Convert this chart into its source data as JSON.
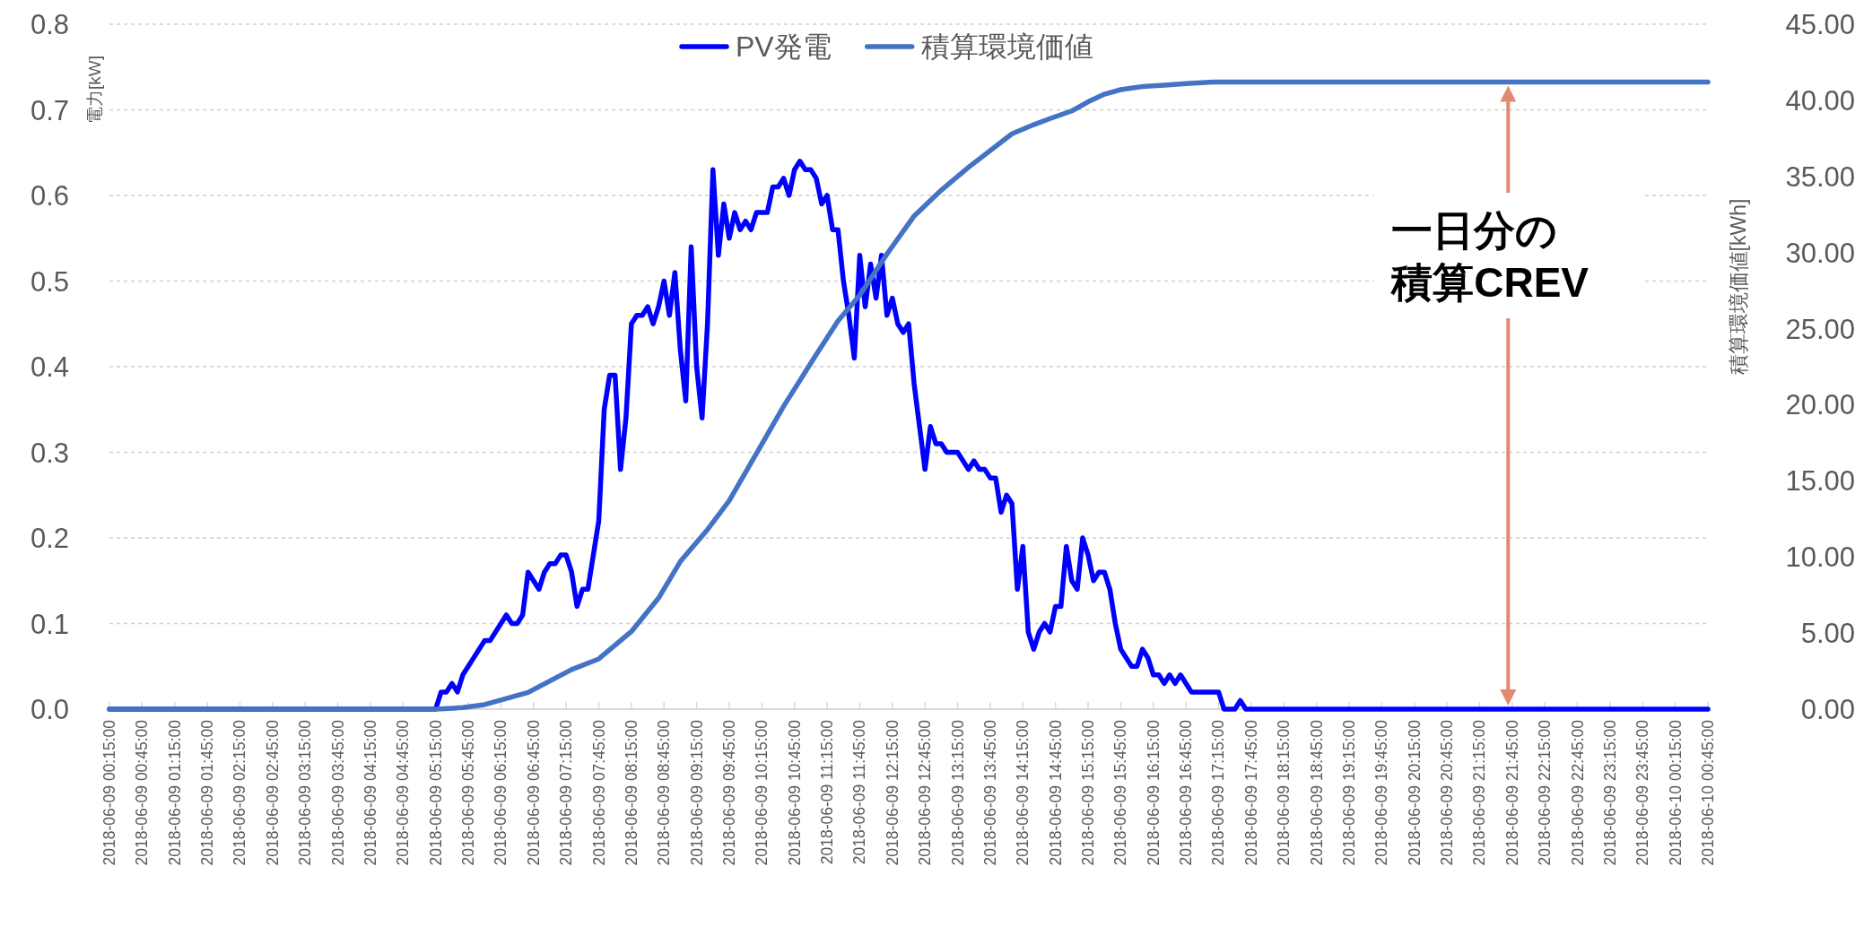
{
  "chart_data": {
    "type": "line",
    "ylabel": "電力[kW]",
    "y2label": "積算環境価値[kWh]",
    "legend": "top",
    "grid": "y",
    "xlim": [
      "2018-06-09T00:15",
      "2018-06-10T00:45"
    ],
    "xticks": [
      {
        "value": "2018-06-09T00:15",
        "label": "2018-06-09 00:15:00"
      },
      {
        "value": "2018-06-09T00:45",
        "label": "2018-06-09 00:45:00"
      },
      {
        "value": "2018-06-09T01:15",
        "label": "2018-06-09 01:15:00"
      },
      {
        "value": "2018-06-09T01:45",
        "label": "2018-06-09 01:45:00"
      },
      {
        "value": "2018-06-09T02:15",
        "label": "2018-06-09 02:15:00"
      },
      {
        "value": "2018-06-09T02:45",
        "label": "2018-06-09 02:45:00"
      },
      {
        "value": "2018-06-09T03:15",
        "label": "2018-06-09 03:15:00"
      },
      {
        "value": "2018-06-09T03:45",
        "label": "2018-06-09 03:45:00"
      },
      {
        "value": "2018-06-09T04:15",
        "label": "2018-06-09 04:15:00"
      },
      {
        "value": "2018-06-09T04:45",
        "label": "2018-06-09 04:45:00"
      },
      {
        "value": "2018-06-09T05:15",
        "label": "2018-06-09 05:15:00"
      },
      {
        "value": "2018-06-09T05:45",
        "label": "2018-06-09 05:45:00"
      },
      {
        "value": "2018-06-09T06:15",
        "label": "2018-06-09 06:15:00"
      },
      {
        "value": "2018-06-09T06:45",
        "label": "2018-06-09 06:45:00"
      },
      {
        "value": "2018-06-09T07:15",
        "label": "2018-06-09 07:15:00"
      },
      {
        "value": "2018-06-09T07:45",
        "label": "2018-06-09 07:45:00"
      },
      {
        "value": "2018-06-09T08:15",
        "label": "2018-06-09 08:15:00"
      },
      {
        "value": "2018-06-09T08:45",
        "label": "2018-06-09 08:45:00"
      },
      {
        "value": "2018-06-09T09:15",
        "label": "2018-06-09 09:15:00"
      },
      {
        "value": "2018-06-09T09:45",
        "label": "2018-06-09 09:45:00"
      },
      {
        "value": "2018-06-09T10:15",
        "label": "2018-06-09 10:15:00"
      },
      {
        "value": "2018-06-09T10:45",
        "label": "2018-06-09 10:45:00"
      },
      {
        "value": "2018-06-09T11:15",
        "label": "2018-06-09 11:15:00"
      },
      {
        "value": "2018-06-09T11:45",
        "label": "2018-06-09 11:45:00"
      },
      {
        "value": "2018-06-09T12:15",
        "label": "2018-06-09 12:15:00"
      },
      {
        "value": "2018-06-09T12:45",
        "label": "2018-06-09 12:45:00"
      },
      {
        "value": "2018-06-09T13:15",
        "label": "2018-06-09 13:15:00"
      },
      {
        "value": "2018-06-09T13:45",
        "label": "2018-06-09 13:45:00"
      },
      {
        "value": "2018-06-09T14:15",
        "label": "2018-06-09 14:15:00"
      },
      {
        "value": "2018-06-09T14:45",
        "label": "2018-06-09 14:45:00"
      },
      {
        "value": "2018-06-09T15:15",
        "label": "2018-06-09 15:15:00"
      },
      {
        "value": "2018-06-09T15:45",
        "label": "2018-06-09 15:45:00"
      },
      {
        "value": "2018-06-09T16:15",
        "label": "2018-06-09 16:15:00"
      },
      {
        "value": "2018-06-09T16:45",
        "label": "2018-06-09 16:45:00"
      },
      {
        "value": "2018-06-09T17:15",
        "label": "2018-06-09 17:15:00"
      },
      {
        "value": "2018-06-09T17:45",
        "label": "2018-06-09 17:45:00"
      },
      {
        "value": "2018-06-09T18:15",
        "label": "2018-06-09 18:15:00"
      },
      {
        "value": "2018-06-09T18:45",
        "label": "2018-06-09 18:45:00"
      },
      {
        "value": "2018-06-09T19:15",
        "label": "2018-06-09 19:15:00"
      },
      {
        "value": "2018-06-09T19:45",
        "label": "2018-06-09 19:45:00"
      },
      {
        "value": "2018-06-09T20:15",
        "label": "2018-06-09 20:15:00"
      },
      {
        "value": "2018-06-09T20:45",
        "label": "2018-06-09 20:45:00"
      },
      {
        "value": "2018-06-09T21:15",
        "label": "2018-06-09 21:15:00"
      },
      {
        "value": "2018-06-09T21:45",
        "label": "2018-06-09 21:45:00"
      },
      {
        "value": "2018-06-09T22:15",
        "label": "2018-06-09 22:15:00"
      },
      {
        "value": "2018-06-09T22:45",
        "label": "2018-06-09 22:45:00"
      },
      {
        "value": "2018-06-09T23:15",
        "label": "2018-06-09 23:15:00"
      },
      {
        "value": "2018-06-09T23:45",
        "label": "2018-06-09 23:45:00"
      },
      {
        "value": "2018-06-10T00:15",
        "label": "2018-06-10 00:15:00"
      },
      {
        "value": "2018-06-10T00:45",
        "label": "2018-06-10 00:45:00"
      }
    ],
    "ylim": [
      0,
      0.8
    ],
    "yticks": [
      {
        "value": 0,
        "label": "0.0"
      },
      {
        "value": 0.1,
        "label": "0.1"
      },
      {
        "value": 0.2,
        "label": "0.2"
      },
      {
        "value": 0.3,
        "label": "0.3"
      },
      {
        "value": 0.4,
        "label": "0.4"
      },
      {
        "value": 0.5,
        "label": "0.5"
      },
      {
        "value": 0.6,
        "label": "0.6"
      },
      {
        "value": 0.7,
        "label": "0.7"
      },
      {
        "value": 0.8,
        "label": "0.8"
      }
    ],
    "y2lim": [
      0,
      45
    ],
    "y2ticks": [
      {
        "value": 0,
        "label": "0.00"
      },
      {
        "value": 5,
        "label": "5.00"
      },
      {
        "value": 10,
        "label": "10.00"
      },
      {
        "value": 15,
        "label": "15.00"
      },
      {
        "value": 20,
        "label": "20.00"
      },
      {
        "value": 25,
        "label": "25.00"
      },
      {
        "value": 30,
        "label": "30.00"
      },
      {
        "value": 35,
        "label": "35.00"
      },
      {
        "value": 40,
        "label": "40.00"
      },
      {
        "value": 45,
        "label": "45.00"
      }
    ],
    "series": [
      {
        "name": "PV発電",
        "color": "#0000ff",
        "x": [
          "2018-06-09T00:15",
          "2018-06-09T05:15",
          "2018-06-09T05:20",
          "2018-06-09T05:25",
          "2018-06-09T05:30",
          "2018-06-09T05:35",
          "2018-06-09T05:40",
          "2018-06-09T06:00",
          "2018-06-09T06:05",
          "2018-06-09T06:20",
          "2018-06-09T06:25",
          "2018-06-09T06:30",
          "2018-06-09T06:35",
          "2018-06-09T06:40",
          "2018-06-09T06:50",
          "2018-06-09T06:55",
          "2018-06-09T07:00",
          "2018-06-09T07:05",
          "2018-06-09T07:10",
          "2018-06-09T07:15",
          "2018-06-09T07:20",
          "2018-06-09T07:25",
          "2018-06-09T07:30",
          "2018-06-09T07:35",
          "2018-06-09T07:45",
          "2018-06-09T07:50",
          "2018-06-09T07:55",
          "2018-06-09T08:00",
          "2018-06-09T08:05",
          "2018-06-09T08:10",
          "2018-06-09T08:15",
          "2018-06-09T08:20",
          "2018-06-09T08:25",
          "2018-06-09T08:30",
          "2018-06-09T08:35",
          "2018-06-09T08:40",
          "2018-06-09T08:45",
          "2018-06-09T08:50",
          "2018-06-09T08:55",
          "2018-06-09T09:00",
          "2018-06-09T09:05",
          "2018-06-09T09:10",
          "2018-06-09T09:15",
          "2018-06-09T09:20",
          "2018-06-09T09:25",
          "2018-06-09T09:30",
          "2018-06-09T09:35",
          "2018-06-09T09:40",
          "2018-06-09T09:45",
          "2018-06-09T09:50",
          "2018-06-09T09:55",
          "2018-06-09T10:00",
          "2018-06-09T10:05",
          "2018-06-09T10:10",
          "2018-06-09T10:20",
          "2018-06-09T10:25",
          "2018-06-09T10:30",
          "2018-06-09T10:35",
          "2018-06-09T10:40",
          "2018-06-09T10:45",
          "2018-06-09T10:50",
          "2018-06-09T10:55",
          "2018-06-09T11:00",
          "2018-06-09T11:05",
          "2018-06-09T11:10",
          "2018-06-09T11:15",
          "2018-06-09T11:20",
          "2018-06-09T11:25",
          "2018-06-09T11:30",
          "2018-06-09T11:35",
          "2018-06-09T11:40",
          "2018-06-09T11:45",
          "2018-06-09T11:50",
          "2018-06-09T11:55",
          "2018-06-09T12:00",
          "2018-06-09T12:05",
          "2018-06-09T12:10",
          "2018-06-09T12:15",
          "2018-06-09T12:20",
          "2018-06-09T12:25",
          "2018-06-09T12:30",
          "2018-06-09T12:35",
          "2018-06-09T12:45",
          "2018-06-09T12:50",
          "2018-06-09T12:55",
          "2018-06-09T13:00",
          "2018-06-09T13:05",
          "2018-06-09T13:15",
          "2018-06-09T13:25",
          "2018-06-09T13:30",
          "2018-06-09T13:35",
          "2018-06-09T13:40",
          "2018-06-09T13:45",
          "2018-06-09T13:50",
          "2018-06-09T13:55",
          "2018-06-09T14:00",
          "2018-06-09T14:05",
          "2018-06-09T14:10",
          "2018-06-09T14:15",
          "2018-06-09T14:20",
          "2018-06-09T14:25",
          "2018-06-09T14:30",
          "2018-06-09T14:35",
          "2018-06-09T14:40",
          "2018-06-09T14:45",
          "2018-06-09T14:50",
          "2018-06-09T14:55",
          "2018-06-09T15:00",
          "2018-06-09T15:05",
          "2018-06-09T15:10",
          "2018-06-09T15:15",
          "2018-06-09T15:20",
          "2018-06-09T15:25",
          "2018-06-09T15:30",
          "2018-06-09T15:35",
          "2018-06-09T15:40",
          "2018-06-09T15:45",
          "2018-06-09T15:55",
          "2018-06-09T16:00",
          "2018-06-09T16:05",
          "2018-06-09T16:10",
          "2018-06-09T16:15",
          "2018-06-09T16:20",
          "2018-06-09T16:25",
          "2018-06-09T16:30",
          "2018-06-09T16:35",
          "2018-06-09T16:40",
          "2018-06-09T16:50",
          "2018-06-09T17:15",
          "2018-06-09T17:20",
          "2018-06-09T17:30",
          "2018-06-09T17:35",
          "2018-06-09T17:40",
          "2018-06-10T00:45"
        ],
        "values": [
          0,
          0,
          0.02,
          0.02,
          0.03,
          0.02,
          0.04,
          0.08,
          0.08,
          0.11,
          0.1,
          0.1,
          0.11,
          0.16,
          0.14,
          0.16,
          0.17,
          0.17,
          0.18,
          0.18,
          0.16,
          0.12,
          0.14,
          0.14,
          0.22,
          0.35,
          0.39,
          0.39,
          0.28,
          0.34,
          0.45,
          0.46,
          0.46,
          0.47,
          0.45,
          0.47,
          0.5,
          0.46,
          0.51,
          0.42,
          0.36,
          0.54,
          0.4,
          0.34,
          0.45,
          0.63,
          0.53,
          0.59,
          0.55,
          0.58,
          0.56,
          0.57,
          0.56,
          0.58,
          0.58,
          0.61,
          0.61,
          0.62,
          0.6,
          0.63,
          0.64,
          0.63,
          0.63,
          0.62,
          0.59,
          0.6,
          0.56,
          0.56,
          0.5,
          0.46,
          0.41,
          0.53,
          0.47,
          0.52,
          0.48,
          0.53,
          0.46,
          0.48,
          0.45,
          0.44,
          0.45,
          0.38,
          0.28,
          0.33,
          0.31,
          0.31,
          0.3,
          0.3,
          0.28,
          0.29,
          0.28,
          0.28,
          0.27,
          0.27,
          0.23,
          0.25,
          0.24,
          0.14,
          0.19,
          0.09,
          0.07,
          0.09,
          0.1,
          0.09,
          0.12,
          0.12,
          0.19,
          0.15,
          0.14,
          0.2,
          0.18,
          0.15,
          0.16,
          0.16,
          0.14,
          0.1,
          0.07,
          0.05,
          0.05,
          0.07,
          0.06,
          0.04,
          0.04,
          0.03,
          0.04,
          0.03,
          0.04,
          0.02,
          0.02,
          0,
          0,
          0.01,
          0,
          0
        ]
      },
      {
        "name": "積算環境価値",
        "color": "#4472c4",
        "axis": "y2",
        "x": [
          "2018-06-09T00:15",
          "2018-06-09T05:15",
          "2018-06-09T05:40",
          "2018-06-09T06:00",
          "2018-06-09T06:40",
          "2018-06-09T07:20",
          "2018-06-09T07:45",
          "2018-06-09T08:15",
          "2018-06-09T08:40",
          "2018-06-09T09:00",
          "2018-06-09T09:25",
          "2018-06-09T09:45",
          "2018-06-09T10:10",
          "2018-06-09T10:35",
          "2018-06-09T11:05",
          "2018-06-09T11:25",
          "2018-06-09T11:45",
          "2018-06-09T12:10",
          "2018-06-09T12:35",
          "2018-06-09T13:00",
          "2018-06-09T13:25",
          "2018-06-09T14:05",
          "2018-06-09T14:25",
          "2018-06-09T14:40",
          "2018-06-09T15:00",
          "2018-06-09T15:15",
          "2018-06-09T15:30",
          "2018-06-09T15:45",
          "2018-06-09T16:05",
          "2018-06-09T16:25",
          "2018-06-09T16:45",
          "2018-06-09T17:10",
          "2018-06-10T00:45"
        ],
        "values": [
          0,
          0,
          0.1,
          0.3,
          1.1,
          2.6,
          3.3,
          5.1,
          7.3,
          9.7,
          11.8,
          13.7,
          16.8,
          19.9,
          23.3,
          25.5,
          27.2,
          29.9,
          32.4,
          34.1,
          35.6,
          37.8,
          38.4,
          38.8,
          39.3,
          39.9,
          40.4,
          40.7,
          40.9,
          41.0,
          41.1,
          41.2,
          41.2
        ]
      }
    ],
    "annotations": [
      "一日分の積算CREV"
    ]
  }
}
